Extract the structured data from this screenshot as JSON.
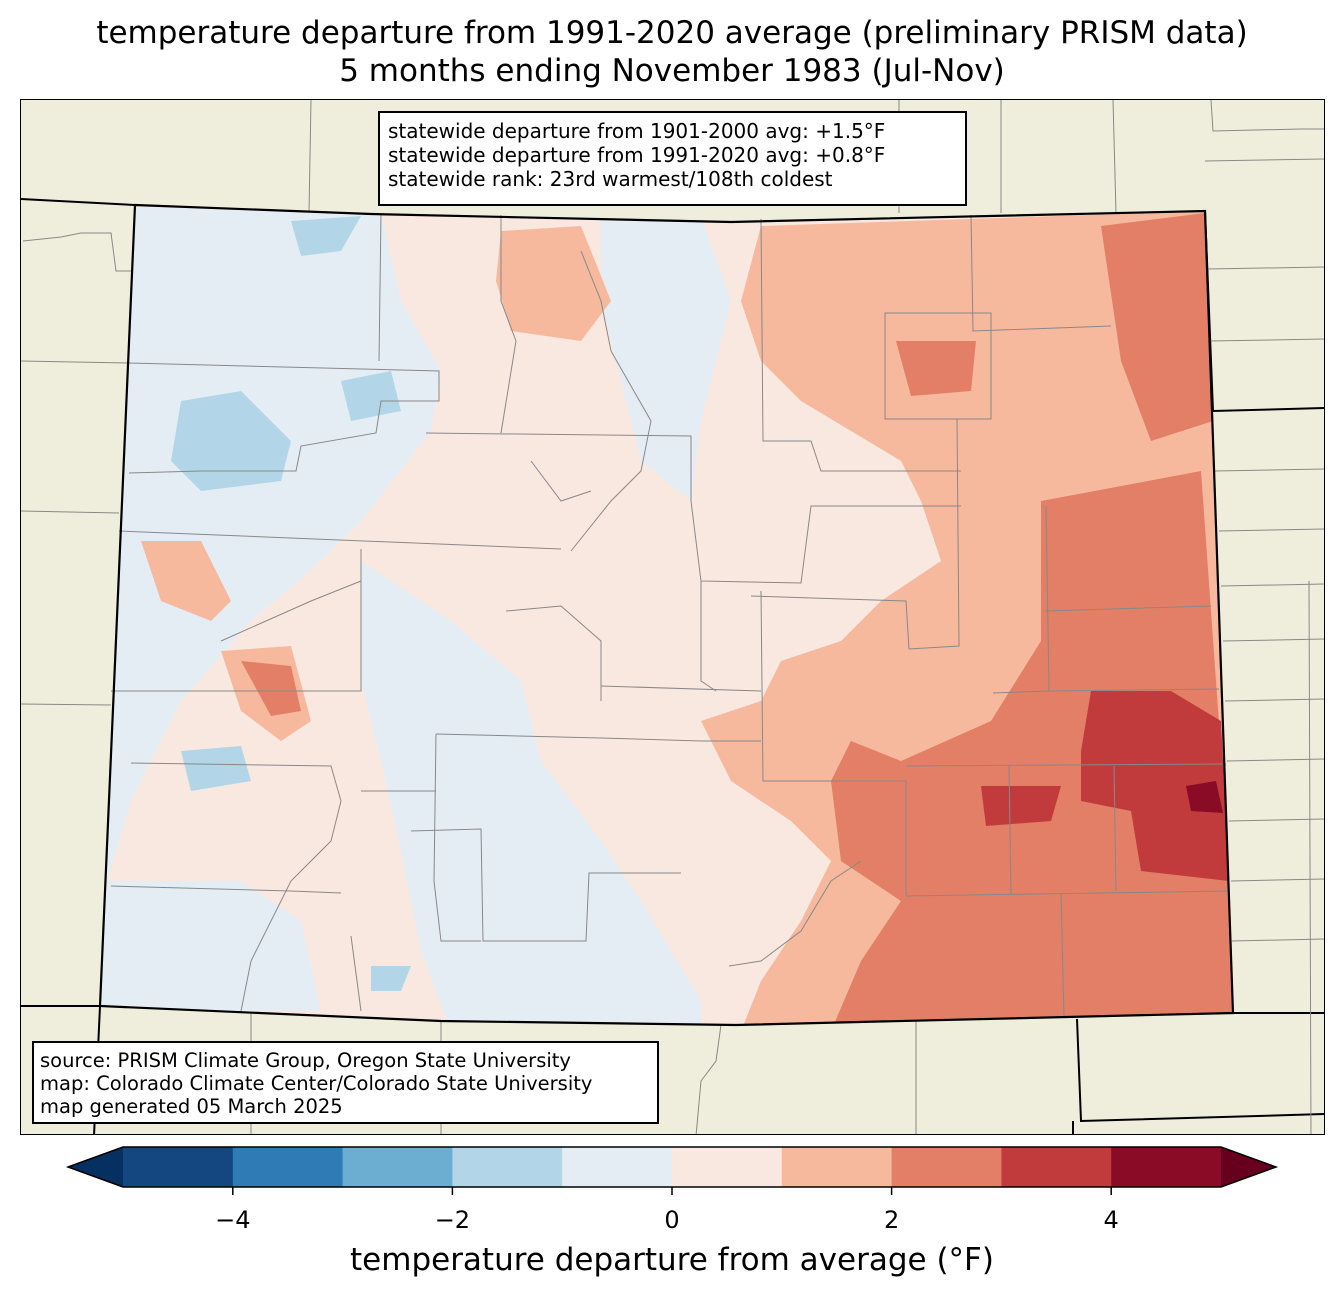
{
  "title": {
    "line1": "temperature departure from 1991-2020 average (preliminary PRISM data)",
    "line2": "5 months ending November 1983 (Jul-Nov)"
  },
  "stats": {
    "line1": "statewide departure from 1901-2000 avg: +1.5°F",
    "line2": "statewide departure from 1991-2020 avg: +0.8°F",
    "line3": "statewide rank: 23rd warmest/108th coldest"
  },
  "source": {
    "line1": "source: PRISM Climate Group, Oregon State University",
    "line2": "map: Colorado Climate Center/Colorado State University",
    "line3": "map generated 05 March 2025"
  },
  "colors": {
    "background": "#efeedc",
    "levels": [
      "#053061",
      "#14477f",
      "#2f7bb6",
      "#6caed2",
      "#b2d6e7",
      "#e5edf4",
      "#f9e8e0",
      "#f7b99d",
      "#e27f66",
      "#c13b3d",
      "#8a0b26",
      "#67001f"
    ]
  },
  "colorbar": {
    "ticks": [
      "−4",
      "−2",
      "0",
      "2",
      "4"
    ],
    "tick_values": [
      -4,
      -2,
      0,
      2,
      4
    ],
    "bounds": [
      -5,
      -4,
      -3,
      -2,
      -1,
      0,
      1,
      2,
      3,
      4,
      5
    ],
    "label": "temperature departure from average (°F)"
  }
}
